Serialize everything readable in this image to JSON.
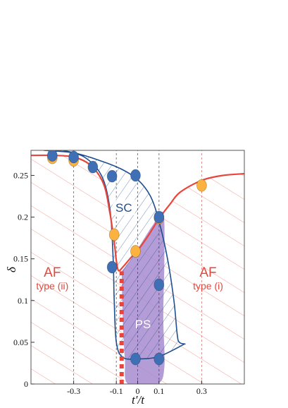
{
  "chart_data": {
    "type": "scatter",
    "xlabel": "t′/t",
    "ylabel": "δ",
    "xlim": [
      -0.5,
      0.5
    ],
    "ylim": [
      0,
      0.28
    ],
    "xticks": [
      -0.3,
      -0.1,
      0,
      0.1,
      0.3
    ],
    "xtick_labels": [
      "-0.3",
      "-0.1",
      "0",
      "0.1",
      "0.3"
    ],
    "yticks": [
      0,
      0.05,
      0.1,
      0.15,
      0.2,
      0.25
    ],
    "ytick_labels": [
      "0",
      "0.05",
      "0.1",
      "0.15",
      "0.2",
      "0.25"
    ],
    "grid": false,
    "vertical_dashed_lines": [
      -0.3,
      -0.1,
      0,
      0.1,
      0.3
    ],
    "series": [
      {
        "marker": "circle",
        "color": "#3f6fb5",
        "x": [
          -0.4,
          -0.3,
          -0.21,
          -0.12,
          -0.01,
          -0.12,
          -0.01,
          0.1,
          0.1,
          0.1
        ],
        "y": [
          0.274,
          0.272,
          0.26,
          0.249,
          0.25,
          0.14,
          0.03,
          0.03,
          0.119,
          0.2
        ]
      },
      {
        "marker": "circle",
        "color": "#fbb23f",
        "x": [
          -0.4,
          -0.3,
          -0.11,
          -0.01,
          0.1,
          0.3
        ],
        "y": [
          0.271,
          0.268,
          0.179,
          0.159,
          0.199,
          0.238
        ]
      }
    ],
    "boundary_af": {
      "color": "#e8463c",
      "x": [
        -0.5,
        -0.4,
        -0.3,
        -0.22,
        -0.16,
        -0.13,
        -0.11,
        -0.1,
        -0.09,
        -0.07,
        -0.03,
        0.0,
        0.05,
        0.1,
        0.15,
        0.2,
        0.3,
        0.4,
        0.5
      ],
      "y": [
        0.274,
        0.274,
        0.272,
        0.262,
        0.24,
        0.205,
        0.17,
        0.148,
        0.136,
        0.14,
        0.152,
        0.16,
        0.178,
        0.198,
        0.215,
        0.23,
        0.244,
        0.25,
        0.252
      ]
    },
    "first_order_line": {
      "style": "dashed",
      "color": "#e8463c",
      "x": -0.075,
      "y_range": [
        0,
        0.135
      ]
    },
    "regions": [
      {
        "label": "AF",
        "sublabel": "type (ii)",
        "x": -0.4,
        "y": 0.12
      },
      {
        "label": "AF",
        "sublabel": "type (i)",
        "x": 0.33,
        "y": 0.12
      },
      {
        "label": "SC",
        "x": -0.065,
        "y": 0.209
      },
      {
        "label": "PS",
        "x": 0.025,
        "y": 0.072
      }
    ]
  }
}
